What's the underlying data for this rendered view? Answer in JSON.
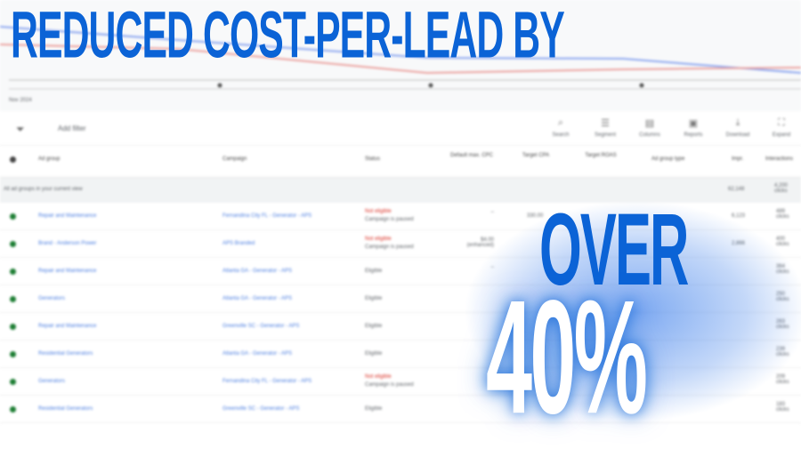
{
  "headline": "REDUCED COST-PER-LEAD BY",
  "callout_top": "OVER",
  "callout_value": "40%",
  "colors": {
    "accent": "#0b63d6",
    "link": "#4a7de0",
    "error": "#d93025",
    "enabled": "#1e7e34"
  },
  "chart": {
    "date_label": "Nov 2024"
  },
  "toolbar": {
    "filter_icon": "filter-icon",
    "add_filter": "Add filter",
    "tools": [
      {
        "icon": "search-icon",
        "label": "Search"
      },
      {
        "icon": "segment-icon",
        "label": "Segment"
      },
      {
        "icon": "columns-icon",
        "label": "Columns"
      },
      {
        "icon": "reports-icon",
        "label": "Reports"
      },
      {
        "icon": "download-icon",
        "label": "Download"
      },
      {
        "icon": "expand-icon",
        "label": "Expand"
      }
    ]
  },
  "table": {
    "headers": [
      "Ad group",
      "Campaign",
      "Status",
      "Default max. CPC",
      "Target CPA",
      "Target ROAS",
      "Ad group type",
      "Impr.",
      "Interactions"
    ],
    "total": {
      "label": "All ad groups in your current view",
      "impr": "62,148",
      "interactions": "4,200 clicks"
    },
    "rows": [
      {
        "ad_group": "Repair and Maintenance",
        "campaign": "Fernandina City FL - Generator - APS",
        "status": "Not eligible",
        "status_sub": "Campaign is paused",
        "cpc": "–",
        "cpa": "330.00",
        "impr": "6,123",
        "inter": "489 clicks"
      },
      {
        "ad_group": "Brand - Anderson Power",
        "campaign": "APS Branded",
        "status": "Not eligible",
        "status_sub": "Campaign is paused",
        "cpc": "$4.00 (enhanced)",
        "cpa": "",
        "impr": "2,866",
        "inter": "400 clicks"
      },
      {
        "ad_group": "Repair and Maintenance",
        "campaign": "Atlanta GA - Generator - APS",
        "status": "Eligible",
        "status_sub": "",
        "cpc": "–",
        "cpa": "",
        "impr": "",
        "inter": "364 clicks"
      },
      {
        "ad_group": "Generators",
        "campaign": "Atlanta GA - Generator - APS",
        "status": "Eligible",
        "status_sub": "",
        "cpc": "",
        "cpa": "",
        "impr": "",
        "inter": "250 clicks"
      },
      {
        "ad_group": "Repair and Maintenance",
        "campaign": "Greenville SC - Generator - APS",
        "status": "Eligible",
        "status_sub": "",
        "cpc": "",
        "cpa": "",
        "impr": "",
        "inter": "263 clicks"
      },
      {
        "ad_group": "Residential Generators",
        "campaign": "Atlanta GA - Generator - APS",
        "status": "Eligible",
        "status_sub": "",
        "cpc": "",
        "cpa": "",
        "impr": "",
        "inter": "239 clicks"
      },
      {
        "ad_group": "Generators",
        "campaign": "Fernandina City FL - Generator - APS",
        "status": "Not eligible",
        "status_sub": "Campaign is paused",
        "cpc": "",
        "cpa": "",
        "impr": "",
        "inter": "209 clicks"
      },
      {
        "ad_group": "Residential Generators",
        "campaign": "Greenville SC - Generator - APS",
        "status": "Eligible",
        "status_sub": "",
        "cpc": "",
        "cpa": "",
        "impr": "",
        "inter": "183 clicks"
      }
    ]
  }
}
